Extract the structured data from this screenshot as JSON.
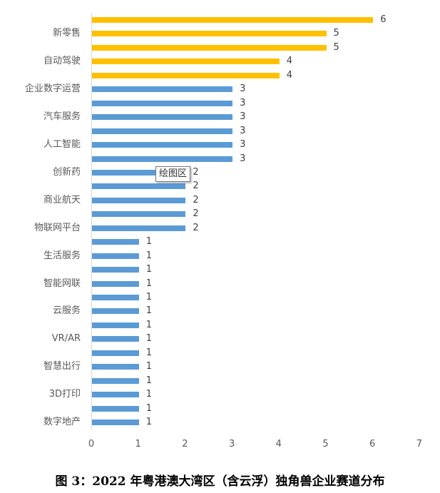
{
  "chart_data": {
    "type": "bar",
    "orientation": "horizontal",
    "title": "图 3：2022 年粤港澳大湾区（含云浮）独角兽企业赛道分布",
    "xlabel": "",
    "ylabel": "",
    "xlim": [
      0,
      7
    ],
    "x_ticks": [
      "0",
      "1",
      "2",
      "3",
      "4",
      "5",
      "6",
      "7"
    ],
    "grid": false,
    "legend": null,
    "colors": {
      "highlight": "#FFC000",
      "default": "#5B9BD5"
    },
    "categories_visible": [
      "新零售",
      "自动驾驶",
      "企业数字运营",
      "汽车服务",
      "人工智能",
      "创新药",
      "商业航天",
      "物联网平台",
      "生活服务",
      "智能网联",
      "云服务",
      "VR/AR",
      "智慧出行",
      "3D打印",
      "数字地产"
    ],
    "bars": [
      {
        "label": "",
        "value": 6,
        "color": "#FFC000"
      },
      {
        "label": "新零售",
        "value": 5,
        "color": "#FFC000"
      },
      {
        "label": "",
        "value": 5,
        "color": "#FFC000"
      },
      {
        "label": "自动驾驶",
        "value": 4,
        "color": "#FFC000"
      },
      {
        "label": "",
        "value": 4,
        "color": "#FFC000"
      },
      {
        "label": "企业数字运营",
        "value": 3,
        "color": "#5B9BD5"
      },
      {
        "label": "",
        "value": 3,
        "color": "#5B9BD5"
      },
      {
        "label": "汽车服务",
        "value": 3,
        "color": "#5B9BD5"
      },
      {
        "label": "",
        "value": 3,
        "color": "#5B9BD5"
      },
      {
        "label": "人工智能",
        "value": 3,
        "color": "#5B9BD5"
      },
      {
        "label": "",
        "value": 3,
        "color": "#5B9BD5"
      },
      {
        "label": "创新药",
        "value": 2,
        "color": "#5B9BD5"
      },
      {
        "label": "",
        "value": 2,
        "color": "#5B9BD5"
      },
      {
        "label": "商业航天",
        "value": 2,
        "color": "#5B9BD5"
      },
      {
        "label": "",
        "value": 2,
        "color": "#5B9BD5"
      },
      {
        "label": "物联网平台",
        "value": 2,
        "color": "#5B9BD5"
      },
      {
        "label": "",
        "value": 1,
        "color": "#5B9BD5"
      },
      {
        "label": "生活服务",
        "value": 1,
        "color": "#5B9BD5"
      },
      {
        "label": "",
        "value": 1,
        "color": "#5B9BD5"
      },
      {
        "label": "智能网联",
        "value": 1,
        "color": "#5B9BD5"
      },
      {
        "label": "",
        "value": 1,
        "color": "#5B9BD5"
      },
      {
        "label": "云服务",
        "value": 1,
        "color": "#5B9BD5"
      },
      {
        "label": "",
        "value": 1,
        "color": "#5B9BD5"
      },
      {
        "label": "VR/AR",
        "value": 1,
        "color": "#5B9BD5"
      },
      {
        "label": "",
        "value": 1,
        "color": "#5B9BD5"
      },
      {
        "label": "智慧出行",
        "value": 1,
        "color": "#5B9BD5"
      },
      {
        "label": "",
        "value": 1,
        "color": "#5B9BD5"
      },
      {
        "label": "3D打印",
        "value": 1,
        "color": "#5B9BD5"
      },
      {
        "label": "",
        "value": 1,
        "color": "#5B9BD5"
      },
      {
        "label": "数字地产",
        "value": 1,
        "color": "#5B9BD5"
      }
    ],
    "annotations": [
      {
        "type": "tooltip",
        "text": "绘图区"
      }
    ]
  },
  "caption": "图 3：2022 年粤港澳大湾区（含云浮）独角兽企业赛道分布",
  "tooltip": "绘图区"
}
